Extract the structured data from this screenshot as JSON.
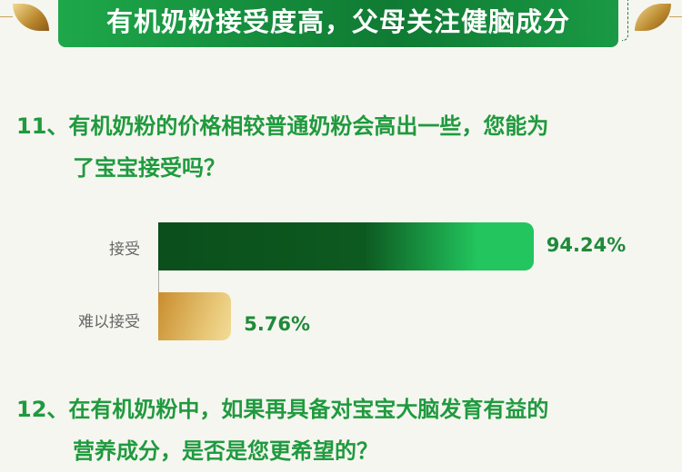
{
  "header": {
    "title": "有机奶粉接受度高，父母关注健脑成分"
  },
  "questions": [
    {
      "line1": "11、有机奶粉的价格相较普通奶粉会高出一些，您能为",
      "line2": "了宝宝接受吗？"
    },
    {
      "line1": "12、在有机奶粉中，如果再具备对宝宝大脑发育有益的",
      "line2": "营养成分，是否是您更希望的？"
    }
  ],
  "colors": {
    "accent": "#1f9a3e",
    "bar_accept": "#22c55e",
    "bar_reject": "#d4a045"
  },
  "chart_data": {
    "type": "bar",
    "orientation": "horizontal",
    "categories": [
      "接受",
      "难以接受"
    ],
    "values": [
      94.24,
      5.76
    ],
    "labels": [
      "94.24%",
      "5.76%"
    ],
    "xlim": [
      0,
      100
    ],
    "grid": false
  }
}
